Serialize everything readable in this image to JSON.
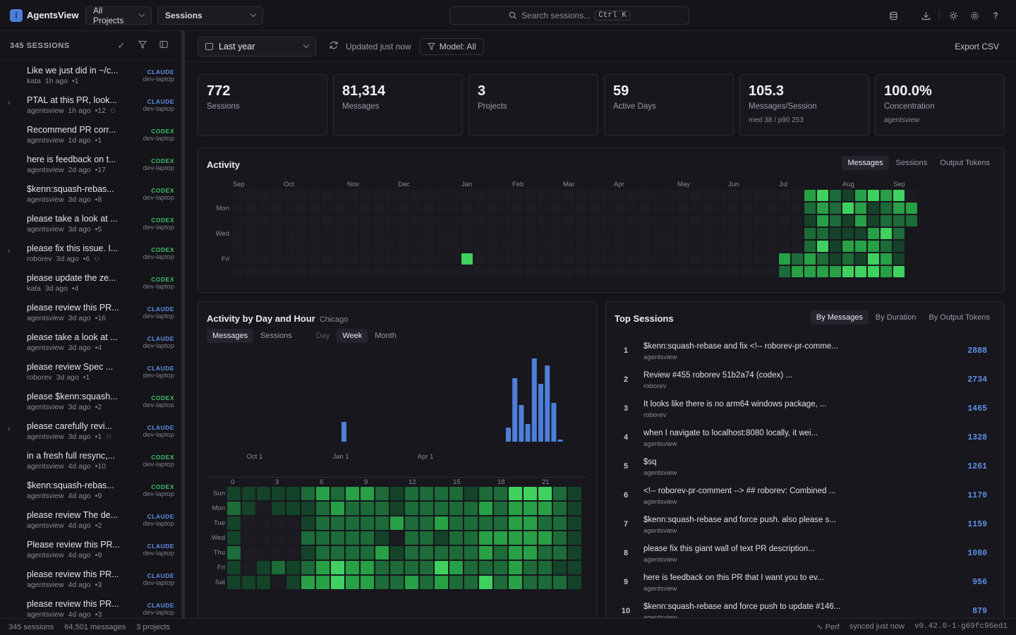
{
  "app": {
    "name": "AgentsView"
  },
  "header": {
    "project_select": "All Projects",
    "view_select": "Sessions",
    "search_placeholder": "Search sessions...",
    "search_shortcut": "Ctrl K",
    "icons": [
      "database-icon",
      "download-icon",
      "sun-icon",
      "gear-icon",
      "help-icon"
    ]
  },
  "sidebar": {
    "title": "345 SESSIONS",
    "sessions": [
      {
        "title": "Like we just did in ~/c...",
        "project": "kata",
        "age": "1h ago",
        "count": "•1",
        "agent": "CLAUDE",
        "host": "dev-laptop",
        "expandable": false,
        "shared": false
      },
      {
        "title": "PTAL at this PR, look...",
        "project": "agentsview",
        "age": "1h ago",
        "count": "•12",
        "agent": "CLAUDE",
        "host": "dev-laptop",
        "expandable": true,
        "shared": true
      },
      {
        "title": "Recommend PR corr...",
        "project": "agentsview",
        "age": "1d ago",
        "count": "•1",
        "agent": "CODEX",
        "host": "dev-laptop",
        "expandable": false,
        "shared": false
      },
      {
        "title": "here is feedback on t...",
        "project": "agentsview",
        "age": "2d ago",
        "count": "•17",
        "agent": "CODEX",
        "host": "dev-laptop",
        "expandable": false,
        "shared": false
      },
      {
        "title": "$kenn:squash-rebas...",
        "project": "agentsview",
        "age": "3d ago",
        "count": "•8",
        "agent": "CODEX",
        "host": "dev-laptop",
        "expandable": false,
        "shared": false
      },
      {
        "title": "please take a look at ...",
        "project": "agentsview",
        "age": "3d ago",
        "count": "•5",
        "agent": "CODEX",
        "host": "dev-laptop",
        "expandable": false,
        "shared": false
      },
      {
        "title": "please fix this issue. I...",
        "project": "roborev",
        "age": "3d ago",
        "count": "•6",
        "agent": "CODEX",
        "host": "dev-laptop",
        "expandable": true,
        "shared": true
      },
      {
        "title": "please update the ze...",
        "project": "kata",
        "age": "3d ago",
        "count": "•4",
        "agent": "CODEX",
        "host": "dev-laptop",
        "expandable": false,
        "shared": false
      },
      {
        "title": "please review this PR...",
        "project": "agentsview",
        "age": "3d ago",
        "count": "•16",
        "agent": "CLAUDE",
        "host": "dev-laptop",
        "expandable": false,
        "shared": false
      },
      {
        "title": "please take a look at ...",
        "project": "agentsview",
        "age": "3d ago",
        "count": "•4",
        "agent": "CLAUDE",
        "host": "dev-laptop",
        "expandable": false,
        "shared": false
      },
      {
        "title": "please review Spec ...",
        "project": "roborev",
        "age": "3d ago",
        "count": "•1",
        "agent": "CLAUDE",
        "host": "dev-laptop",
        "expandable": false,
        "shared": false
      },
      {
        "title": "please $kenn:squash...",
        "project": "agentsview",
        "age": "3d ago",
        "count": "•2",
        "agent": "CODEX",
        "host": "dev-laptop",
        "expandable": false,
        "shared": false
      },
      {
        "title": "please carefully revi...",
        "project": "agentsview",
        "age": "3d ago",
        "count": "•1",
        "agent": "CLAUDE",
        "host": "dev-laptop",
        "expandable": true,
        "shared": true
      },
      {
        "title": "in a fresh full resync,...",
        "project": "agentsview",
        "age": "4d ago",
        "count": "•10",
        "agent": "CODEX",
        "host": "dev-laptop",
        "expandable": false,
        "shared": false
      },
      {
        "title": "$kenn:squash-rebas...",
        "project": "agentsview",
        "age": "4d ago",
        "count": "•9",
        "agent": "CODEX",
        "host": "dev-laptop",
        "expandable": false,
        "shared": false
      },
      {
        "title": "please review The de...",
        "project": "agentsview",
        "age": "4d ago",
        "count": "•2",
        "agent": "CLAUDE",
        "host": "dev-laptop",
        "expandable": false,
        "shared": false
      },
      {
        "title": "Please review this PR...",
        "project": "agentsview",
        "age": "4d ago",
        "count": "•9",
        "agent": "CLAUDE",
        "host": "dev-laptop",
        "expandable": false,
        "shared": false
      },
      {
        "title": "please review this PR...",
        "project": "agentsview",
        "age": "4d ago",
        "count": "•3",
        "agent": "CLAUDE",
        "host": "dev-laptop",
        "expandable": false,
        "shared": false
      },
      {
        "title": "please review this PR...",
        "project": "agentsview",
        "age": "4d ago",
        "count": "•3",
        "agent": "CLAUDE",
        "host": "dev-laptop",
        "expandable": false,
        "shared": false
      }
    ]
  },
  "toolbar": {
    "range": "Last year",
    "updated": "Updated just now",
    "model": "Model: All",
    "export": "Export CSV"
  },
  "cards": [
    {
      "value": "772",
      "label": "Sessions",
      "sub": ""
    },
    {
      "value": "81,314",
      "label": "Messages",
      "sub": ""
    },
    {
      "value": "3",
      "label": "Projects",
      "sub": ""
    },
    {
      "value": "59",
      "label": "Active Days",
      "sub": ""
    },
    {
      "value": "105.3",
      "label": "Messages/Session",
      "sub": "med 38 / p90 253"
    },
    {
      "value": "100.0%",
      "label": "Concentration",
      "sub": "agentsview"
    }
  ],
  "activity": {
    "title": "Activity",
    "tabs": [
      "Messages",
      "Sessions",
      "Output Tokens"
    ],
    "active_tab": "Messages",
    "months": [
      "Sep",
      "Oct",
      "Nov",
      "Dec",
      "Jan",
      "Feb",
      "Mar",
      "Apr",
      "May",
      "Jun",
      "Jul",
      "Aug",
      "Sep"
    ],
    "day_labels": [
      "Mon",
      "Wed",
      "Fri"
    ],
    "colors": {
      "empty": "#1b1b21",
      "l1": "#14432a",
      "l2": "#1c6b38",
      "l3": "#27a046",
      "l4": "#3fd160"
    }
  },
  "day_hour": {
    "title": "Activity by Day and Hour",
    "timezone": "Chicago",
    "metric_tabs": [
      "Messages",
      "Sessions"
    ],
    "active_metric": "Messages",
    "period_tabs": [
      "Day",
      "Week",
      "Month"
    ],
    "active_period": "Week",
    "x_ticks": [
      "Oct 1",
      "Jan 1",
      "Apr 1"
    ],
    "hour_labels": [
      "0",
      "3",
      "6",
      "9",
      "12",
      "15",
      "18",
      "21"
    ],
    "day_labels": [
      "Sun",
      "Mon",
      "Tue",
      "Wed",
      "Thu",
      "Fri",
      "Sat"
    ]
  },
  "chart_data": {
    "type": "bar",
    "title": "Activity by Day and Hour",
    "x_ticks": [
      "Oct 1",
      "Jan 1",
      "Apr 1"
    ],
    "series": [
      {
        "values": [
          28,
          0,
          0,
          0,
          0,
          0,
          0,
          0,
          0,
          0,
          0,
          0,
          0,
          0,
          0,
          0,
          0,
          0,
          0,
          0,
          0,
          0,
          0,
          0,
          0,
          0,
          0,
          0,
          0,
          0,
          0,
          0,
          0,
          0,
          0,
          0,
          0,
          0,
          0,
          20,
          90,
          52,
          25,
          118,
          82,
          108,
          55,
          3
        ]
      }
    ],
    "jan_bar_index": 0
  },
  "top_sessions": {
    "title": "Top Sessions",
    "tabs": [
      "By Messages",
      "By Duration",
      "By Output Tokens"
    ],
    "active_tab": "By Messages",
    "rows": [
      {
        "rank": "1",
        "title": "$kenn:squash-rebase and fix <!-- roborev-pr-comme...",
        "project": "agentsview",
        "value": "2888"
      },
      {
        "rank": "2",
        "title": "Review #455 roborev 51b2a74 (codex) ...",
        "project": "roborev",
        "value": "2734"
      },
      {
        "rank": "3",
        "title": "It looks like there is no arm64 windows package, ...",
        "project": "roborev",
        "value": "1465"
      },
      {
        "rank": "4",
        "title": "when I navigate to localhost:8080 locally, it wei...",
        "project": "agentsview",
        "value": "1328"
      },
      {
        "rank": "5",
        "title": "$sq",
        "project": "agentsview",
        "value": "1261"
      },
      {
        "rank": "6",
        "title": "<!-- roborev-pr-comment --> ## roborev: Combined ...",
        "project": "agentsview",
        "value": "1170"
      },
      {
        "rank": "7",
        "title": "$kenn:squash-rebase and force push. also please s...",
        "project": "agentsview",
        "value": "1159"
      },
      {
        "rank": "8",
        "title": "please fix this giant wall of text PR description...",
        "project": "agentsview",
        "value": "1080"
      },
      {
        "rank": "9",
        "title": "here is feedback on this PR that I want you to ev...",
        "project": "agentsview",
        "value": "956"
      },
      {
        "rank": "10",
        "title": "$kenn:squash-rebase and force push to update #146...",
        "project": "agentsview",
        "value": "879"
      }
    ]
  },
  "status": {
    "sessions": "345 sessions",
    "messages": "64,501 messages",
    "projects": "3 projects",
    "perf": "Perf",
    "synced": "synced just now",
    "version": "v0.42.0-1-g69fc96ed1"
  }
}
